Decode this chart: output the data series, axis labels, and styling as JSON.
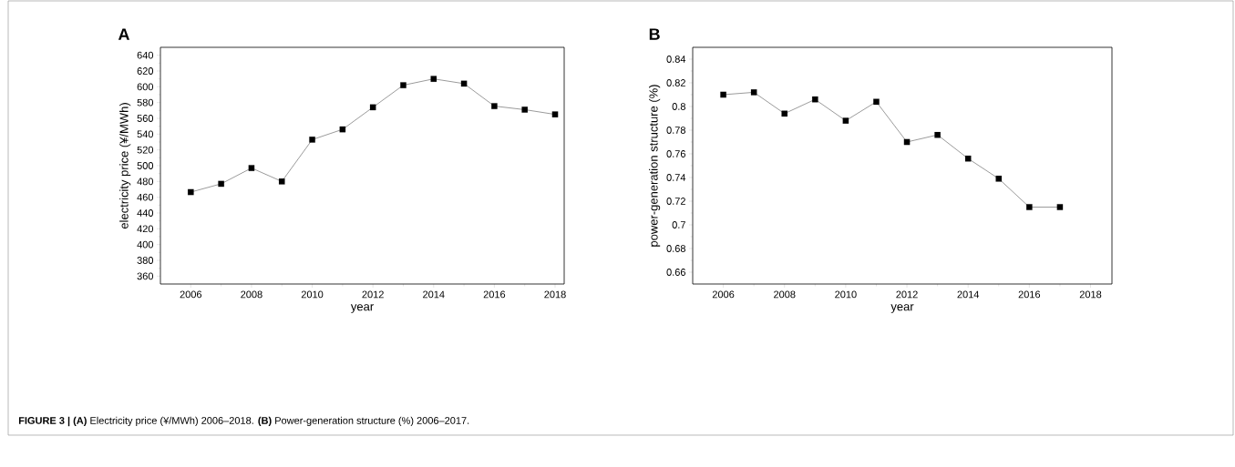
{
  "chart_data": [
    {
      "type": "line",
      "title": "A",
      "xlabel": "year",
      "ylabel": "electricity price (¥/MWh)",
      "x": [
        2006,
        2007,
        2008,
        2009,
        2010,
        2011,
        2012,
        2013,
        2014,
        2015,
        2016,
        2017,
        2018
      ],
      "values": [
        466.5,
        477,
        497,
        480,
        533,
        546,
        574,
        602,
        610,
        604,
        575.5,
        571,
        565
      ],
      "color": "#000000",
      "marker": "square",
      "xlim": [
        2005,
        2018.3
      ],
      "ylim": [
        350,
        650
      ],
      "xticks": [
        2006,
        2008,
        2010,
        2012,
        2014,
        2016,
        2018
      ],
      "yticks": [
        360,
        380,
        400,
        420,
        440,
        460,
        480,
        500,
        520,
        540,
        560,
        580,
        600,
        620,
        640
      ],
      "annotations": [
        "**FIGURE 3 | (A)** Electricity price (¥/MWh) 2006–2018. **(B)** Power-generation structure (%) 2006–2017."
      ]
    },
    {
      "type": "line",
      "title": "B",
      "xlabel": "year",
      "ylabel": "power-generation structure (%)",
      "x": [
        2006,
        2007,
        2008,
        2009,
        2010,
        2011,
        2012,
        2013,
        2014,
        2015,
        2016,
        2017
      ],
      "values": [
        0.81,
        0.812,
        0.794,
        0.806,
        0.788,
        0.804,
        0.77,
        0.776,
        0.756,
        0.739,
        0.715,
        0.715
      ],
      "color": "#000000",
      "marker": "square",
      "xlim": [
        2005,
        2018.7
      ],
      "ylim": [
        0.65,
        0.85
      ],
      "xticks": [
        2006,
        2008,
        2010,
        2012,
        2014,
        2016,
        2018
      ],
      "yticks": [
        0.66,
        0.68,
        0.7,
        0.72,
        0.74,
        0.76,
        0.78,
        0.8,
        0.82,
        0.84
      ]
    }
  ]
}
